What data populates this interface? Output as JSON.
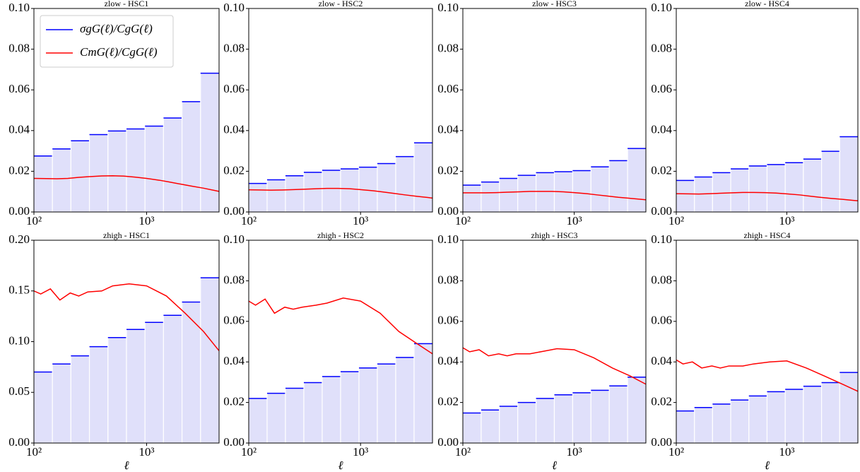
{
  "chart_data": [
    {
      "type": "histogram",
      "title": "zlow - HSC1",
      "legend": "upper left",
      "bins": [
        100,
        146,
        213,
        311,
        454,
        663,
        968,
        1413,
        2063,
        3012,
        4398
      ],
      "bars": {
        "name": "σgG(ℓ)/CgG(ℓ)",
        "color": "#0000ff",
        "fill": "#e0e0fa",
        "values": [
          0.0275,
          0.031,
          0.035,
          0.038,
          0.0398,
          0.0408,
          0.0422,
          0.0462,
          0.0542,
          0.0682
        ]
      },
      "line": {
        "name": "CmG(ℓ)/CgG(ℓ)",
        "color": "#ff0000",
        "x": [
          100,
          130,
          160,
          200,
          250,
          320,
          400,
          500,
          630,
          800,
          1000,
          1300,
          1600,
          2000,
          2500,
          3200,
          4000,
          4398
        ],
        "values": [
          0.0165,
          0.0164,
          0.0163,
          0.0165,
          0.017,
          0.0174,
          0.0177,
          0.0178,
          0.0176,
          0.0171,
          0.0165,
          0.0156,
          0.0147,
          0.0137,
          0.0127,
          0.0117,
          0.0106,
          0.0101
        ]
      },
      "xlim": [
        100,
        4398
      ],
      "xticks": [
        {
          "value": 100,
          "label": "10²"
        },
        {
          "value": 1000,
          "label": "10³"
        }
      ],
      "ylim": [
        0,
        0.1
      ],
      "yticks": [
        {
          "value": 0,
          "label": "0.00"
        },
        {
          "value": 0.02,
          "label": "0.02"
        },
        {
          "value": 0.04,
          "label": "0.04"
        },
        {
          "value": 0.06,
          "label": "0.06"
        },
        {
          "value": 0.08,
          "label": "0.08"
        },
        {
          "value": 0.1,
          "label": "0.10"
        }
      ]
    },
    {
      "type": "histogram",
      "title": "zlow - HSC2",
      "bins": [
        100,
        146,
        213,
        311,
        454,
        663,
        968,
        1413,
        2063,
        3012,
        4398
      ],
      "bars": {
        "color": "#0000ff",
        "fill": "#e0e0fa",
        "values": [
          0.014,
          0.0158,
          0.0178,
          0.0195,
          0.0205,
          0.0212,
          0.022,
          0.0238,
          0.0272,
          0.034
        ]
      },
      "line": {
        "color": "#ff0000",
        "x": [
          100,
          130,
          160,
          200,
          250,
          320,
          400,
          500,
          630,
          800,
          1000,
          1300,
          1600,
          2000,
          2500,
          3200,
          4000,
          4398
        ],
        "values": [
          0.0109,
          0.0108,
          0.0107,
          0.0108,
          0.011,
          0.0112,
          0.0114,
          0.0116,
          0.0116,
          0.0114,
          0.011,
          0.0104,
          0.0098,
          0.0091,
          0.0084,
          0.0077,
          0.0071,
          0.0068
        ]
      },
      "xlim": [
        100,
        4398
      ],
      "xticks": [
        {
          "value": 100,
          "label": "10²"
        },
        {
          "value": 1000,
          "label": "10³"
        }
      ],
      "ylim": [
        0,
        0.1
      ],
      "yticks": [
        {
          "value": 0,
          "label": "0.00"
        },
        {
          "value": 0.02,
          "label": "0.02"
        },
        {
          "value": 0.04,
          "label": "0.04"
        },
        {
          "value": 0.06,
          "label": "0.06"
        },
        {
          "value": 0.08,
          "label": "0.08"
        },
        {
          "value": 0.1,
          "label": "0.10"
        }
      ]
    },
    {
      "type": "histogram",
      "title": "zlow - HSC3",
      "bins": [
        100,
        146,
        213,
        311,
        454,
        663,
        968,
        1413,
        2063,
        3012,
        4398
      ],
      "bars": {
        "color": "#0000ff",
        "fill": "#e0e0fa",
        "values": [
          0.0132,
          0.0147,
          0.0165,
          0.018,
          0.0193,
          0.0198,
          0.0203,
          0.0222,
          0.0252,
          0.0312
        ]
      },
      "line": {
        "color": "#ff0000",
        "x": [
          100,
          130,
          160,
          200,
          250,
          320,
          400,
          500,
          630,
          800,
          1000,
          1300,
          1600,
          2000,
          2500,
          3200,
          4000,
          4398
        ],
        "values": [
          0.0094,
          0.0094,
          0.0094,
          0.0095,
          0.0097,
          0.0099,
          0.0101,
          0.0101,
          0.0101,
          0.0099,
          0.0095,
          0.009,
          0.0084,
          0.0078,
          0.0072,
          0.0067,
          0.0062,
          0.006
        ]
      },
      "xlim": [
        100,
        4398
      ],
      "xticks": [
        {
          "value": 100,
          "label": "10²"
        },
        {
          "value": 1000,
          "label": "10³"
        }
      ],
      "ylim": [
        0,
        0.1
      ],
      "yticks": [
        {
          "value": 0,
          "label": "0.00"
        },
        {
          "value": 0.02,
          "label": "0.02"
        },
        {
          "value": 0.04,
          "label": "0.04"
        },
        {
          "value": 0.06,
          "label": "0.06"
        },
        {
          "value": 0.08,
          "label": "0.08"
        },
        {
          "value": 0.1,
          "label": "0.10"
        }
      ]
    },
    {
      "type": "histogram",
      "title": "zlow - HSC4",
      "bins": [
        100,
        146,
        213,
        311,
        454,
        663,
        968,
        1413,
        2063,
        3012,
        4398
      ],
      "bars": {
        "color": "#0000ff",
        "fill": "#e0e0fa",
        "values": [
          0.0155,
          0.0172,
          0.0193,
          0.0212,
          0.0226,
          0.0233,
          0.0242,
          0.026,
          0.0298,
          0.037
        ]
      },
      "line": {
        "color": "#ff0000",
        "x": [
          100,
          130,
          160,
          200,
          250,
          320,
          400,
          500,
          630,
          800,
          1000,
          1300,
          1600,
          2000,
          2500,
          3200,
          4000,
          4398
        ],
        "values": [
          0.009,
          0.0089,
          0.0088,
          0.009,
          0.0092,
          0.0094,
          0.0096,
          0.0096,
          0.0095,
          0.0093,
          0.0089,
          0.0084,
          0.0078,
          0.0072,
          0.0067,
          0.0062,
          0.0057,
          0.0055
        ]
      },
      "xlim": [
        100,
        4398
      ],
      "xticks": [
        {
          "value": 100,
          "label": "10²"
        },
        {
          "value": 1000,
          "label": "10³"
        }
      ],
      "ylim": [
        0,
        0.1
      ],
      "yticks": [
        {
          "value": 0,
          "label": "0.00"
        },
        {
          "value": 0.02,
          "label": "0.02"
        },
        {
          "value": 0.04,
          "label": "0.04"
        },
        {
          "value": 0.06,
          "label": "0.06"
        },
        {
          "value": 0.08,
          "label": "0.08"
        },
        {
          "value": 0.1,
          "label": "0.10"
        }
      ]
    },
    {
      "type": "histogram",
      "title": "zhigh - HSC1",
      "xlabel": "ℓ",
      "bins": [
        100,
        146,
        213,
        311,
        454,
        663,
        968,
        1413,
        2063,
        3012,
        4398
      ],
      "bars": {
        "color": "#0000ff",
        "fill": "#e0e0fa",
        "values": [
          0.07,
          0.078,
          0.086,
          0.095,
          0.104,
          0.112,
          0.119,
          0.126,
          0.139,
          0.163
        ]
      },
      "line": {
        "color": "#ff0000",
        "x": [
          100,
          115,
          140,
          170,
          210,
          250,
          300,
          400,
          500,
          700,
          1000,
          1500,
          2200,
          3200,
          4398
        ],
        "values": [
          0.15,
          0.147,
          0.152,
          0.141,
          0.148,
          0.145,
          0.149,
          0.15,
          0.155,
          0.157,
          0.155,
          0.145,
          0.128,
          0.11,
          0.091
        ]
      },
      "xlim": [
        100,
        4398
      ],
      "xticks": [
        {
          "value": 100,
          "label": "10²"
        },
        {
          "value": 1000,
          "label": "10³"
        }
      ],
      "ylim": [
        0,
        0.2
      ],
      "yticks": [
        {
          "value": 0,
          "label": "0.00"
        },
        {
          "value": 0.05,
          "label": "0.05"
        },
        {
          "value": 0.1,
          "label": "0.10"
        },
        {
          "value": 0.15,
          "label": "0.15"
        },
        {
          "value": 0.2,
          "label": "0.20"
        }
      ]
    },
    {
      "type": "histogram",
      "title": "zhigh - HSC2",
      "xlabel": "ℓ",
      "bins": [
        100,
        146,
        213,
        311,
        454,
        663,
        968,
        1413,
        2063,
        3012,
        4398
      ],
      "bars": {
        "color": "#0000ff",
        "fill": "#e0e0fa",
        "values": [
          0.022,
          0.0245,
          0.027,
          0.0298,
          0.0328,
          0.0352,
          0.037,
          0.039,
          0.0422,
          0.049
        ]
      },
      "line": {
        "color": "#ff0000",
        "x": [
          100,
          115,
          140,
          170,
          210,
          250,
          300,
          400,
          500,
          700,
          1000,
          1500,
          2200,
          3200,
          4398
        ],
        "values": [
          0.07,
          0.068,
          0.071,
          0.064,
          0.067,
          0.066,
          0.067,
          0.068,
          0.069,
          0.0715,
          0.07,
          0.064,
          0.055,
          0.049,
          0.044
        ]
      },
      "xlim": [
        100,
        4398
      ],
      "xticks": [
        {
          "value": 100,
          "label": "10²"
        },
        {
          "value": 1000,
          "label": "10³"
        }
      ],
      "ylim": [
        0,
        0.1
      ],
      "yticks": [
        {
          "value": 0,
          "label": "0.00"
        },
        {
          "value": 0.02,
          "label": "0.02"
        },
        {
          "value": 0.04,
          "label": "0.04"
        },
        {
          "value": 0.06,
          "label": "0.06"
        },
        {
          "value": 0.08,
          "label": "0.08"
        },
        {
          "value": 0.1,
          "label": "0.10"
        }
      ]
    },
    {
      "type": "histogram",
      "title": "zhigh - HSC3",
      "xlabel": "ℓ",
      "bins": [
        100,
        146,
        213,
        311,
        454,
        663,
        968,
        1413,
        2063,
        3012,
        4398
      ],
      "bars": {
        "color": "#0000ff",
        "fill": "#e0e0fa",
        "values": [
          0.0148,
          0.0163,
          0.0181,
          0.02,
          0.022,
          0.0238,
          0.0248,
          0.026,
          0.0282,
          0.0325
        ]
      },
      "line": {
        "color": "#ff0000",
        "x": [
          100,
          115,
          140,
          170,
          210,
          250,
          300,
          400,
          500,
          700,
          1000,
          1500,
          2200,
          3200,
          4398
        ],
        "values": [
          0.047,
          0.045,
          0.046,
          0.043,
          0.044,
          0.043,
          0.044,
          0.044,
          0.045,
          0.0465,
          0.046,
          0.042,
          0.037,
          0.033,
          0.029
        ]
      },
      "xlim": [
        100,
        4398
      ],
      "xticks": [
        {
          "value": 100,
          "label": "10²"
        },
        {
          "value": 1000,
          "label": "10³"
        }
      ],
      "ylim": [
        0,
        0.1
      ],
      "yticks": [
        {
          "value": 0,
          "label": "0.00"
        },
        {
          "value": 0.02,
          "label": "0.02"
        },
        {
          "value": 0.04,
          "label": "0.04"
        },
        {
          "value": 0.06,
          "label": "0.06"
        },
        {
          "value": 0.08,
          "label": "0.08"
        },
        {
          "value": 0.1,
          "label": "0.10"
        }
      ]
    },
    {
      "type": "histogram",
      "title": "zhigh - HSC4",
      "xlabel": "ℓ",
      "bins": [
        100,
        146,
        213,
        311,
        454,
        663,
        968,
        1413,
        2063,
        3012,
        4398
      ],
      "bars": {
        "color": "#0000ff",
        "fill": "#e0e0fa",
        "values": [
          0.0158,
          0.0175,
          0.0192,
          0.0212,
          0.0232,
          0.0253,
          0.0265,
          0.028,
          0.0298,
          0.0348
        ]
      },
      "line": {
        "color": "#ff0000",
        "x": [
          100,
          115,
          140,
          170,
          210,
          250,
          300,
          400,
          500,
          700,
          1000,
          1500,
          2200,
          3200,
          4398
        ],
        "values": [
          0.041,
          0.039,
          0.04,
          0.037,
          0.038,
          0.037,
          0.038,
          0.038,
          0.039,
          0.04,
          0.0405,
          0.037,
          0.033,
          0.029,
          0.0255
        ]
      },
      "xlim": [
        100,
        4398
      ],
      "xticks": [
        {
          "value": 100,
          "label": "10²"
        },
        {
          "value": 1000,
          "label": "10³"
        }
      ],
      "ylim": [
        0,
        0.1
      ],
      "yticks": [
        {
          "value": 0,
          "label": "0.00"
        },
        {
          "value": 0.02,
          "label": "0.02"
        },
        {
          "value": 0.04,
          "label": "0.04"
        },
        {
          "value": 0.06,
          "label": "0.06"
        },
        {
          "value": 0.08,
          "label": "0.08"
        },
        {
          "value": 0.1,
          "label": "0.10"
        }
      ]
    }
  ]
}
